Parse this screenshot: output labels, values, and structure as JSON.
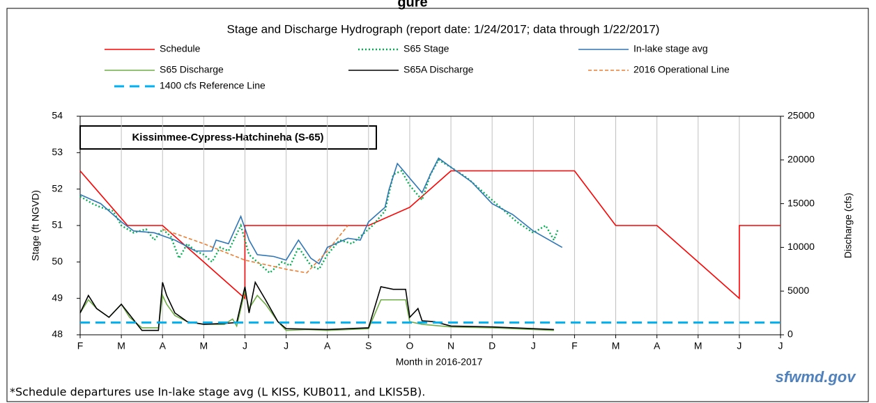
{
  "figure_label": "gure",
  "chart_data": {
    "type": "line",
    "title": "Stage and Discharge Hydrograph  (report date: 1/24/2017; data through 1/22/2017)",
    "annotation": "Kissimmee-Cypress-Hatchineha (S-65)",
    "xlabel": "Month in 2016-2017",
    "ylabel": "Stage (ft NGVD)",
    "y2label": "Discharge (cfs)",
    "footnote": "*Schedule departures use In-lake stage avg (L KISS, KUB011, and LKIS5B).",
    "logo": "sfwmd.gov",
    "xlim": [
      0,
      17
    ],
    "xticks": [
      {
        "value": 0,
        "label": "F"
      },
      {
        "value": 1,
        "label": "M"
      },
      {
        "value": 2,
        "label": "A"
      },
      {
        "value": 3,
        "label": "M"
      },
      {
        "value": 4,
        "label": "J"
      },
      {
        "value": 5,
        "label": "J"
      },
      {
        "value": 6,
        "label": "A"
      },
      {
        "value": 7,
        "label": "S"
      },
      {
        "value": 8,
        "label": "O"
      },
      {
        "value": 9,
        "label": "N"
      },
      {
        "value": 10,
        "label": "D"
      },
      {
        "value": 11,
        "label": "J"
      },
      {
        "value": 12,
        "label": "F"
      },
      {
        "value": 13,
        "label": "M"
      },
      {
        "value": 14,
        "label": "A"
      },
      {
        "value": 15,
        "label": "M"
      },
      {
        "value": 16,
        "label": "J"
      },
      {
        "value": 17,
        "label": "J"
      }
    ],
    "ylim": [
      48,
      54
    ],
    "yticks": [
      48,
      49,
      50,
      51,
      52,
      53,
      54
    ],
    "y2lim": [
      0,
      25000
    ],
    "y2ticks": [
      0,
      5000,
      10000,
      15000,
      20000,
      25000
    ],
    "grid": "x",
    "series": [
      {
        "name": "Schedule",
        "color": "#ff0000",
        "style": "solid",
        "x": [
          0,
          1.15,
          2,
          4,
          4,
          7,
          8,
          9,
          12,
          13,
          14,
          16,
          16,
          17
        ],
        "values": [
          52.5,
          51,
          51,
          49,
          51,
          51,
          51.5,
          52.5,
          52.5,
          51,
          51,
          49,
          51,
          51
        ]
      },
      {
        "name": "S65 Stage",
        "color": "#00b050",
        "style": "dotted",
        "x": [
          0,
          0.3,
          0.5,
          0.8,
          1,
          1.3,
          1.6,
          1.8,
          2,
          2.2,
          2.4,
          2.6,
          2.8,
          3,
          3.2,
          3.4,
          3.6,
          3.9,
          4.1,
          4.3,
          4.6,
          4.9,
          5.1,
          5.3,
          5.6,
          5.8,
          6,
          6.3,
          6.6,
          6.9,
          7.1,
          7.4,
          7.6,
          7.8,
          8,
          8.3,
          8.5,
          8.7,
          9,
          9.4,
          9.8,
          10.2,
          10.6,
          11,
          11.3,
          11.5,
          11.6
        ],
        "values": [
          51.8,
          51.6,
          51.5,
          51.4,
          51.0,
          50.8,
          50.9,
          50.6,
          50.9,
          50.7,
          50.1,
          50.5,
          50.3,
          50.2,
          50.0,
          50.4,
          50.3,
          51.0,
          50.2,
          50.0,
          49.7,
          50.0,
          49.9,
          50.4,
          49.9,
          49.8,
          50.2,
          50.6,
          50.5,
          50.8,
          51.0,
          51.4,
          52.4,
          52.5,
          52.1,
          51.7,
          52.4,
          52.8,
          52.6,
          52.3,
          51.9,
          51.5,
          51.1,
          50.8,
          51.0,
          50.6,
          50.9
        ]
      },
      {
        "name": "In-lake stage avg",
        "color": "#2e75b6",
        "style": "solid",
        "x": [
          0,
          0.5,
          1,
          1.3,
          1.8,
          2.3,
          2.8,
          3.2,
          3.3,
          3.6,
          3.9,
          4.1,
          4.3,
          4.7,
          5,
          5.3,
          5.6,
          5.8,
          6,
          6.2,
          6.5,
          6.8,
          7,
          7.4,
          7.5,
          7.7,
          8,
          8.3,
          8.5,
          8.7,
          9,
          9.5,
          10,
          10.5,
          11,
          11.7
        ],
        "values": [
          51.85,
          51.6,
          51.1,
          50.85,
          50.8,
          50.6,
          50.3,
          50.3,
          50.6,
          50.5,
          51.25,
          50.6,
          50.2,
          50.15,
          50.05,
          50.6,
          50.1,
          49.95,
          50.4,
          50.5,
          50.65,
          50.6,
          51.1,
          51.5,
          52.0,
          52.7,
          52.3,
          51.9,
          52.4,
          52.85,
          52.6,
          52.2,
          51.6,
          51.3,
          50.85,
          50.4
        ]
      },
      {
        "name": "S65 Discharge",
        "color": "#70ad47",
        "style": "solid",
        "axis": "y2",
        "x": [
          0,
          0.2,
          0.4,
          0.7,
          1,
          1.2,
          1.5,
          1.9,
          2,
          2.1,
          2.3,
          2.6,
          3,
          3.5,
          3.7,
          3.8,
          4,
          4.1,
          4.3,
          4.5,
          4.8,
          5,
          5.5,
          6,
          7,
          7.3,
          7.6,
          7.9,
          8,
          8.3,
          9,
          10,
          11,
          11.5
        ],
        "values": [
          2500,
          4000,
          3000,
          2000,
          3500,
          2000,
          800,
          800,
          4500,
          3500,
          2200,
          1500,
          1200,
          1200,
          1800,
          1000,
          5000,
          3000,
          4500,
          3500,
          1500,
          500,
          600,
          500,
          700,
          4000,
          4000,
          4000,
          1500,
          1200,
          900,
          800,
          600,
          500
        ]
      },
      {
        "name": "S65A Discharge",
        "color": "#000000",
        "style": "solid",
        "axis": "y2",
        "x": [
          0,
          0.2,
          0.4,
          0.7,
          1,
          1.2,
          1.5,
          1.9,
          2,
          2.1,
          2.3,
          2.6,
          3,
          3.5,
          3.8,
          4,
          4.1,
          4.25,
          4.5,
          4.8,
          5,
          6,
          7,
          7.3,
          7.6,
          7.9,
          8,
          8.2,
          8.3,
          8.6,
          9,
          10,
          11,
          11.5
        ],
        "values": [
          2500,
          4500,
          3000,
          2000,
          3500,
          2300,
          500,
          500,
          6000,
          4500,
          2500,
          1500,
          1200,
          1300,
          1400,
          5500,
          2500,
          6000,
          4000,
          1500,
          700,
          600,
          800,
          5500,
          5200,
          5200,
          2000,
          3000,
          1600,
          1500,
          1000,
          900,
          700,
          600
        ]
      },
      {
        "name": "2016 Operational Line",
        "color": "#ed7d31",
        "style": "dashed",
        "x": [
          2,
          3,
          4,
          5,
          5.5,
          6,
          6.5
        ],
        "values": [
          50.9,
          50.5,
          50.05,
          49.8,
          49.7,
          50.3,
          51.0
        ]
      },
      {
        "name": "1400 cfs Reference Line",
        "color": "#00b0f0",
        "style": "longdash",
        "axis": "y2",
        "x": [
          0,
          17
        ],
        "values": [
          1400,
          1400
        ]
      }
    ]
  }
}
